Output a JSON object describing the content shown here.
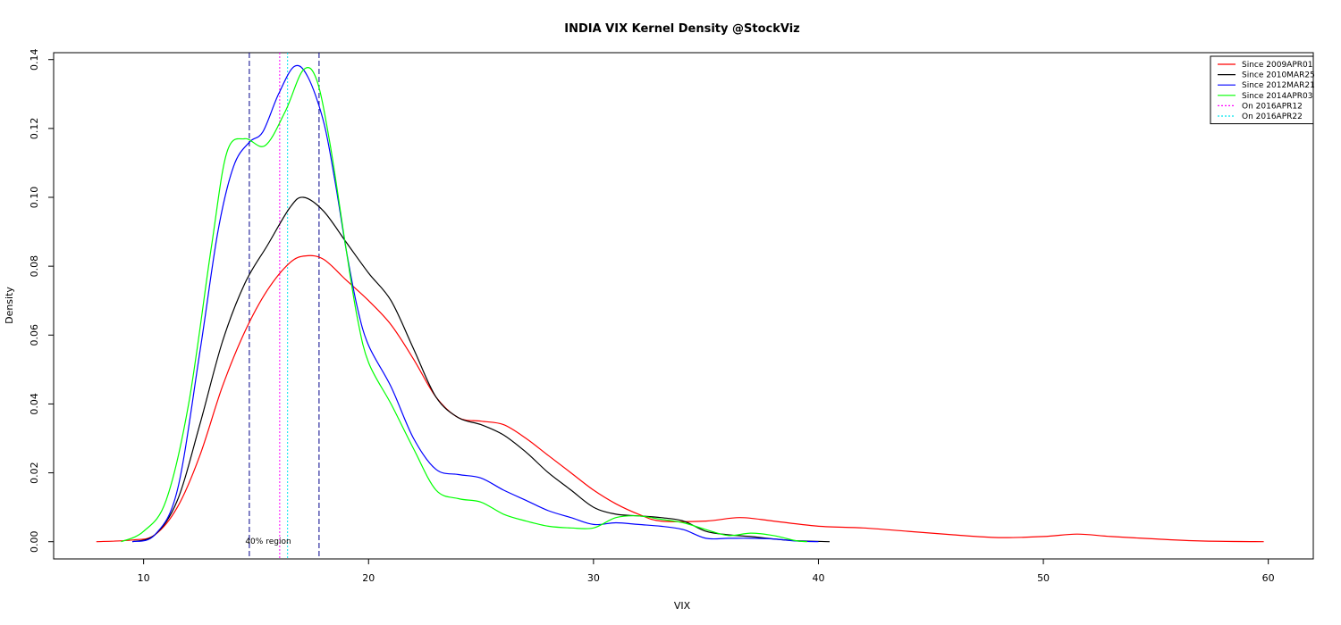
{
  "chart_data": {
    "type": "line",
    "title": "INDIA VIX Kernel Density @StockViz",
    "xlabel": "VIX",
    "ylabel": "Density",
    "xlim": [
      6,
      62
    ],
    "ylim": [
      -0.005,
      0.142
    ],
    "x_ticks": [
      10,
      20,
      30,
      40,
      50,
      60
    ],
    "y_ticks": [
      0.0,
      0.02,
      0.04,
      0.06,
      0.08,
      0.1,
      0.12,
      0.14
    ],
    "y_tick_labels": [
      "0.00",
      "0.02",
      "0.04",
      "0.06",
      "0.08",
      "0.10",
      "0.12",
      "0.14"
    ],
    "grid": false,
    "legend_position": "top-right",
    "annotation": "40% region",
    "series": [
      {
        "name": "Since 2009APR01",
        "color": "#ff0000",
        "line_style": "solid",
        "points": [
          [
            7.9,
            0
          ],
          [
            9.5,
            0.0005
          ],
          [
            10.5,
            0.002
          ],
          [
            11.5,
            0.01
          ],
          [
            12.5,
            0.025
          ],
          [
            13.5,
            0.045
          ],
          [
            14.5,
            0.061
          ],
          [
            15.5,
            0.073
          ],
          [
            16.5,
            0.081
          ],
          [
            17.2,
            0.083
          ],
          [
            18,
            0.082
          ],
          [
            19,
            0.076
          ],
          [
            20,
            0.07
          ],
          [
            21,
            0.063
          ],
          [
            22,
            0.053
          ],
          [
            23,
            0.042
          ],
          [
            24,
            0.036
          ],
          [
            25,
            0.035
          ],
          [
            26,
            0.034
          ],
          [
            27,
            0.03
          ],
          [
            28,
            0.025
          ],
          [
            29,
            0.02
          ],
          [
            30,
            0.015
          ],
          [
            31,
            0.011
          ],
          [
            32,
            0.008
          ],
          [
            33,
            0.006
          ],
          [
            35,
            0.006
          ],
          [
            36.5,
            0.007
          ],
          [
            38,
            0.006
          ],
          [
            40,
            0.0045
          ],
          [
            42,
            0.004
          ],
          [
            44,
            0.003
          ],
          [
            46,
            0.002
          ],
          [
            48,
            0.0012
          ],
          [
            50,
            0.0015
          ],
          [
            51.5,
            0.0022
          ],
          [
            53,
            0.0015
          ],
          [
            55,
            0.0008
          ],
          [
            57,
            0.0002
          ],
          [
            59.8,
            0
          ]
        ]
      },
      {
        "name": "Since 2010MAR25",
        "color": "#000000",
        "line_style": "solid",
        "points": [
          [
            9.5,
            0
          ],
          [
            10.5,
            0.002
          ],
          [
            11.5,
            0.012
          ],
          [
            12.5,
            0.034
          ],
          [
            13.5,
            0.058
          ],
          [
            14.5,
            0.075
          ],
          [
            15.5,
            0.086
          ],
          [
            16.5,
            0.097
          ],
          [
            17.1,
            0.1
          ],
          [
            18,
            0.096
          ],
          [
            19,
            0.087
          ],
          [
            20,
            0.078
          ],
          [
            21,
            0.07
          ],
          [
            22,
            0.056
          ],
          [
            23,
            0.042
          ],
          [
            24,
            0.036
          ],
          [
            25,
            0.034
          ],
          [
            26,
            0.031
          ],
          [
            27,
            0.026
          ],
          [
            28,
            0.02
          ],
          [
            29,
            0.015
          ],
          [
            30,
            0.01
          ],
          [
            31,
            0.008
          ],
          [
            32,
            0.0075
          ],
          [
            33,
            0.007
          ],
          [
            34,
            0.006
          ],
          [
            35,
            0.003
          ],
          [
            36,
            0.002
          ],
          [
            37,
            0.0015
          ],
          [
            38,
            0.0008
          ],
          [
            39,
            0.0003
          ],
          [
            40.5,
            0
          ]
        ]
      },
      {
        "name": "Since 2012MAR21",
        "color": "#0000ff",
        "line_style": "solid",
        "points": [
          [
            9.5,
            0
          ],
          [
            10.5,
            0.002
          ],
          [
            11.5,
            0.015
          ],
          [
            12.5,
            0.055
          ],
          [
            13.3,
            0.09
          ],
          [
            14,
            0.109
          ],
          [
            14.7,
            0.116
          ],
          [
            15.3,
            0.119
          ],
          [
            16,
            0.13
          ],
          [
            16.7,
            0.138
          ],
          [
            17.3,
            0.135
          ],
          [
            18,
            0.122
          ],
          [
            18.5,
            0.105
          ],
          [
            19,
            0.085
          ],
          [
            19.5,
            0.068
          ],
          [
            20,
            0.057
          ],
          [
            21,
            0.045
          ],
          [
            22,
            0.03
          ],
          [
            23,
            0.021
          ],
          [
            24,
            0.0195
          ],
          [
            25,
            0.0185
          ],
          [
            26,
            0.015
          ],
          [
            27,
            0.012
          ],
          [
            28,
            0.009
          ],
          [
            29,
            0.007
          ],
          [
            30,
            0.005
          ],
          [
            31,
            0.0055
          ],
          [
            32,
            0.005
          ],
          [
            33,
            0.0045
          ],
          [
            34,
            0.0035
          ],
          [
            35,
            0.001
          ],
          [
            36,
            0.001
          ],
          [
            37,
            0.001
          ],
          [
            38,
            0.0008
          ],
          [
            39,
            0.0002
          ],
          [
            40,
            0
          ]
        ]
      },
      {
        "name": "Since 2014APR03",
        "color": "#00ff00",
        "line_style": "solid",
        "points": [
          [
            9,
            0
          ],
          [
            10,
            0.003
          ],
          [
            11,
            0.012
          ],
          [
            12,
            0.04
          ],
          [
            13,
            0.085
          ],
          [
            13.7,
            0.113
          ],
          [
            14.5,
            0.117
          ],
          [
            15.4,
            0.115
          ],
          [
            16.3,
            0.125
          ],
          [
            17.1,
            0.137
          ],
          [
            17.7,
            0.134
          ],
          [
            18.3,
            0.115
          ],
          [
            19,
            0.085
          ],
          [
            19.5,
            0.065
          ],
          [
            20,
            0.052
          ],
          [
            21,
            0.04
          ],
          [
            22,
            0.027
          ],
          [
            23,
            0.015
          ],
          [
            24,
            0.0125
          ],
          [
            25,
            0.0115
          ],
          [
            26,
            0.008
          ],
          [
            27,
            0.006
          ],
          [
            28,
            0.0045
          ],
          [
            29,
            0.004
          ],
          [
            30,
            0.004
          ],
          [
            31,
            0.007
          ],
          [
            32,
            0.0075
          ],
          [
            33,
            0.0065
          ],
          [
            34,
            0.0055
          ],
          [
            35,
            0.0035
          ],
          [
            36,
            0.0018
          ],
          [
            37,
            0.0025
          ],
          [
            38,
            0.0018
          ],
          [
            39,
            0.0003
          ],
          [
            39.5,
            0
          ]
        ]
      }
    ],
    "vlines": [
      {
        "x": 14.7,
        "color": "#00008b",
        "line_style": "dashed"
      },
      {
        "x": 17.8,
        "color": "#00008b",
        "line_style": "dashed"
      },
      {
        "x": 16.05,
        "name": "On 2016APR12",
        "color": "#ff00ff",
        "line_style": "dotted"
      },
      {
        "x": 16.4,
        "name": "On 2016APR22",
        "color": "#00e5ee",
        "line_style": "dotted"
      }
    ],
    "legend": [
      {
        "label": "Since 2009APR01",
        "color": "#ff0000",
        "line_style": "solid"
      },
      {
        "label": "Since 2010MAR25",
        "color": "#000000",
        "line_style": "solid"
      },
      {
        "label": "Since 2012MAR21",
        "color": "#0000ff",
        "line_style": "solid"
      },
      {
        "label": "Since 2014APR03",
        "color": "#00ff00",
        "line_style": "solid"
      },
      {
        "label": "On 2016APR12",
        "color": "#ff00ff",
        "line_style": "dotted"
      },
      {
        "label": "On 2016APR22",
        "color": "#00e5ee",
        "line_style": "dotted"
      }
    ]
  }
}
